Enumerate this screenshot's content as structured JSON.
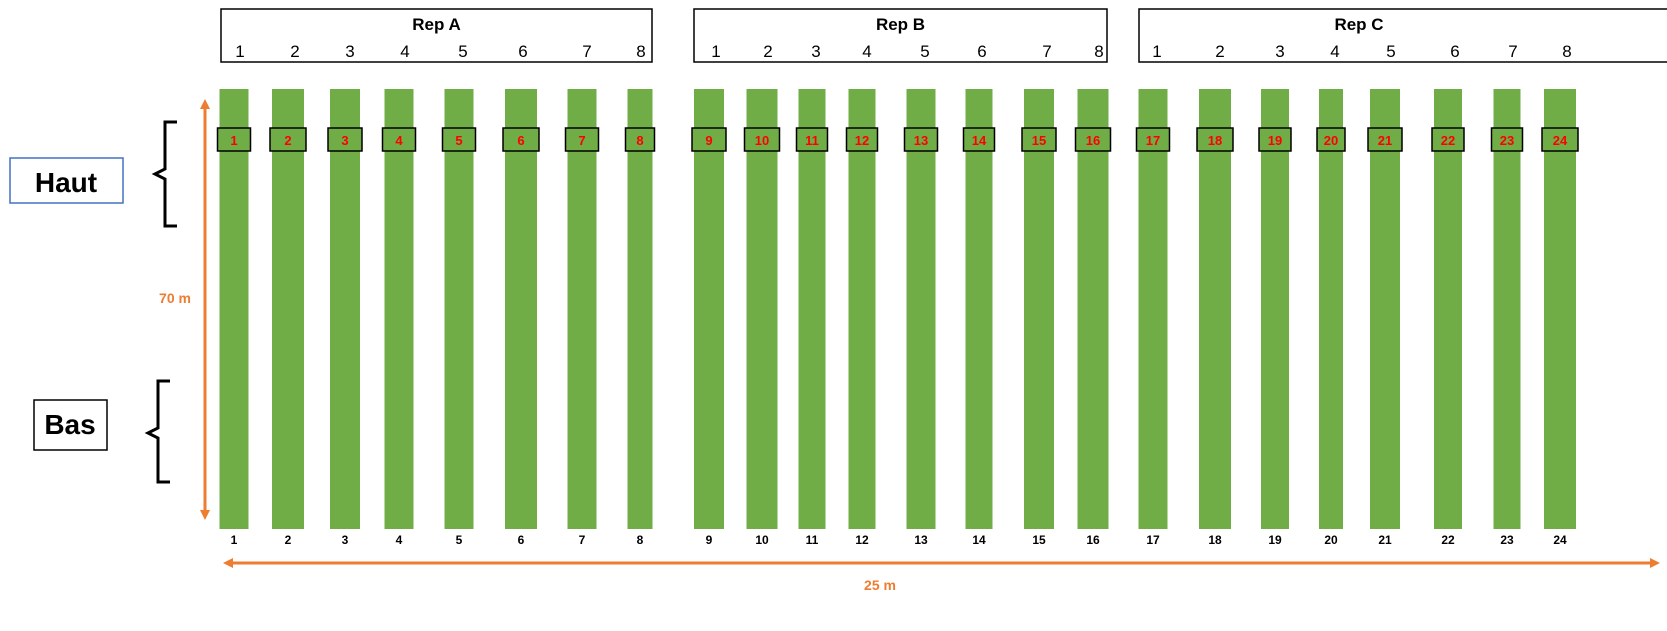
{
  "reps": [
    {
      "title": "Rep A",
      "numbers": [
        "1",
        "2",
        "3",
        "4",
        "5",
        "6",
        "7",
        "8"
      ]
    },
    {
      "title": "Rep B",
      "numbers": [
        "1",
        "2",
        "3",
        "4",
        "5",
        "6",
        "7",
        "8"
      ]
    },
    {
      "title": "Rep C",
      "numbers": [
        "1",
        "2",
        "3",
        "4",
        "5",
        "6",
        "7",
        "8"
      ]
    }
  ],
  "plots": [
    "1",
    "2",
    "3",
    "4",
    "5",
    "6",
    "7",
    "8",
    "9",
    "10",
    "11",
    "12",
    "13",
    "14",
    "15",
    "16",
    "17",
    "18",
    "19",
    "20",
    "21",
    "22",
    "23",
    "24"
  ],
  "labels": {
    "haut": "Haut",
    "bas": "Bas",
    "length": "70 m",
    "width": "25 m"
  },
  "colors": {
    "strip": "#70AD47",
    "arrow": "#ED7D31",
    "plot_label": "#FF0000",
    "haut_border": "#4472C4"
  }
}
